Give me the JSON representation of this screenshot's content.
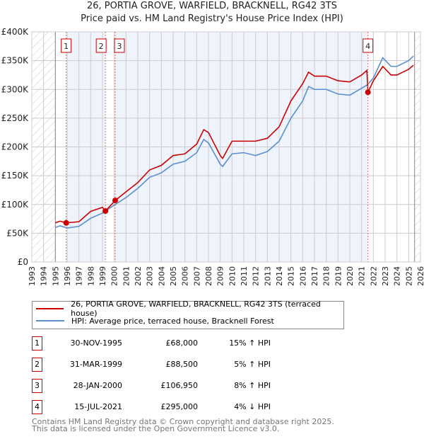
{
  "title": "26, PORTIA GROVE, WARFIELD, BRACKNELL, RG42 3TS",
  "subtitle": "Price paid vs. HM Land Registry's House Price Index (HPI)",
  "colors": {
    "price": "#cc0000",
    "hpi": "#5b8fd1",
    "band": "#eef3fc"
  },
  "chart_data": {
    "type": "line",
    "xlim": [
      1993,
      2026
    ],
    "ylim": [
      0,
      400000
    ],
    "y_ticks": [
      {
        "v": 0,
        "label": "£0"
      },
      {
        "v": 50000,
        "label": "£50K"
      },
      {
        "v": 100000,
        "label": "£100K"
      },
      {
        "v": 150000,
        "label": "£150K"
      },
      {
        "v": 200000,
        "label": "£200K"
      },
      {
        "v": 250000,
        "label": "£250K"
      },
      {
        "v": 300000,
        "label": "£300K"
      },
      {
        "v": 350000,
        "label": "£350K"
      },
      {
        "v": 400000,
        "label": "£400K"
      }
    ],
    "x_ticks": [
      "1993",
      "1994",
      "1995",
      "1996",
      "1997",
      "1998",
      "1999",
      "2000",
      "2001",
      "2002",
      "2003",
      "2004",
      "2005",
      "2006",
      "2007",
      "2008",
      "2009",
      "2010",
      "2011",
      "2012",
      "2013",
      "2014",
      "2015",
      "2016",
      "2017",
      "2018",
      "2019",
      "2020",
      "2021",
      "2022",
      "2023",
      "2024",
      "2025",
      "2026"
    ],
    "hatched_before": 1995,
    "hatched_after": 2025.5,
    "series": [
      {
        "name": "26, PORTIA GROVE, WARFIELD, BRACKNELL, RG42 3TS (terraced house)",
        "x": [
          1995,
          1995.4,
          1995.9,
          1997,
          1998,
          1999,
          1999.25,
          2000.08,
          2001,
          2002,
          2003,
          2004,
          2005,
          2006,
          2007,
          2007.6,
          2008,
          2009,
          2009.2,
          2010,
          2011,
          2012,
          2013,
          2014,
          2015,
          2016,
          2016.5,
          2017,
          2018,
          2019,
          2020,
          2021,
          2021.45,
          2021.54,
          2022,
          2022.8,
          2023.5,
          2024,
          2025,
          2025.4
        ],
        "y": [
          68000,
          71000,
          68000,
          70000,
          88000,
          95000,
          88500,
          106950,
          122000,
          138000,
          160000,
          168000,
          185000,
          188000,
          205000,
          230000,
          225000,
          185000,
          180000,
          210000,
          210000,
          210000,
          215000,
          235000,
          280000,
          310000,
          330000,
          323000,
          323000,
          315000,
          313000,
          325000,
          333000,
          295000,
          315000,
          340000,
          325000,
          325000,
          335000,
          342000
        ]
      },
      {
        "name": "HPI: Average price, terraced house, Bracknell Forest",
        "x": [
          1995,
          1995.4,
          1996,
          1997,
          1998,
          1999,
          2000,
          2001,
          2002,
          2003,
          2004,
          2005,
          2006,
          2007,
          2007.6,
          2008,
          2009,
          2009.2,
          2010,
          2011,
          2012,
          2013,
          2014,
          2015,
          2016,
          2016.5,
          2017,
          2018,
          2019,
          2020,
          2021,
          2021.5,
          2022,
          2022.8,
          2023.5,
          2024,
          2025,
          2025.4
        ],
        "y": [
          60000,
          63000,
          59000,
          62000,
          76000,
          85000,
          99000,
          112000,
          128000,
          147000,
          155000,
          170000,
          175000,
          190000,
          213000,
          207000,
          170000,
          166000,
          188000,
          190000,
          185000,
          192000,
          210000,
          250000,
          280000,
          305000,
          300000,
          300000,
          292000,
          290000,
          302000,
          308000,
          320000,
          355000,
          340000,
          340000,
          350000,
          358000
        ]
      }
    ],
    "sales": [
      {
        "n": "1",
        "x": 1995.92,
        "y": 68000
      },
      {
        "n": "2",
        "x": 1999.25,
        "y": 88500
      },
      {
        "n": "3",
        "x": 2000.08,
        "y": 106950
      },
      {
        "n": "4",
        "x": 2021.54,
        "y": 295000
      }
    ]
  },
  "table": [
    {
      "n": "1",
      "date": "30-NOV-1995",
      "price": "£68,000",
      "hpi": "15% ↑ HPI"
    },
    {
      "n": "2",
      "date": "31-MAR-1999",
      "price": "£88,500",
      "hpi": "5% ↑ HPI"
    },
    {
      "n": "3",
      "date": "28-JAN-2000",
      "price": "£106,950",
      "hpi": "8% ↑ HPI"
    },
    {
      "n": "4",
      "date": "15-JUL-2021",
      "price": "£295,000",
      "hpi": "4% ↓ HPI"
    }
  ],
  "footer": {
    "line1": "Contains HM Land Registry data © Crown copyright and database right 2025.",
    "line2": "This data is licensed under the Open Government Licence v3.0."
  }
}
